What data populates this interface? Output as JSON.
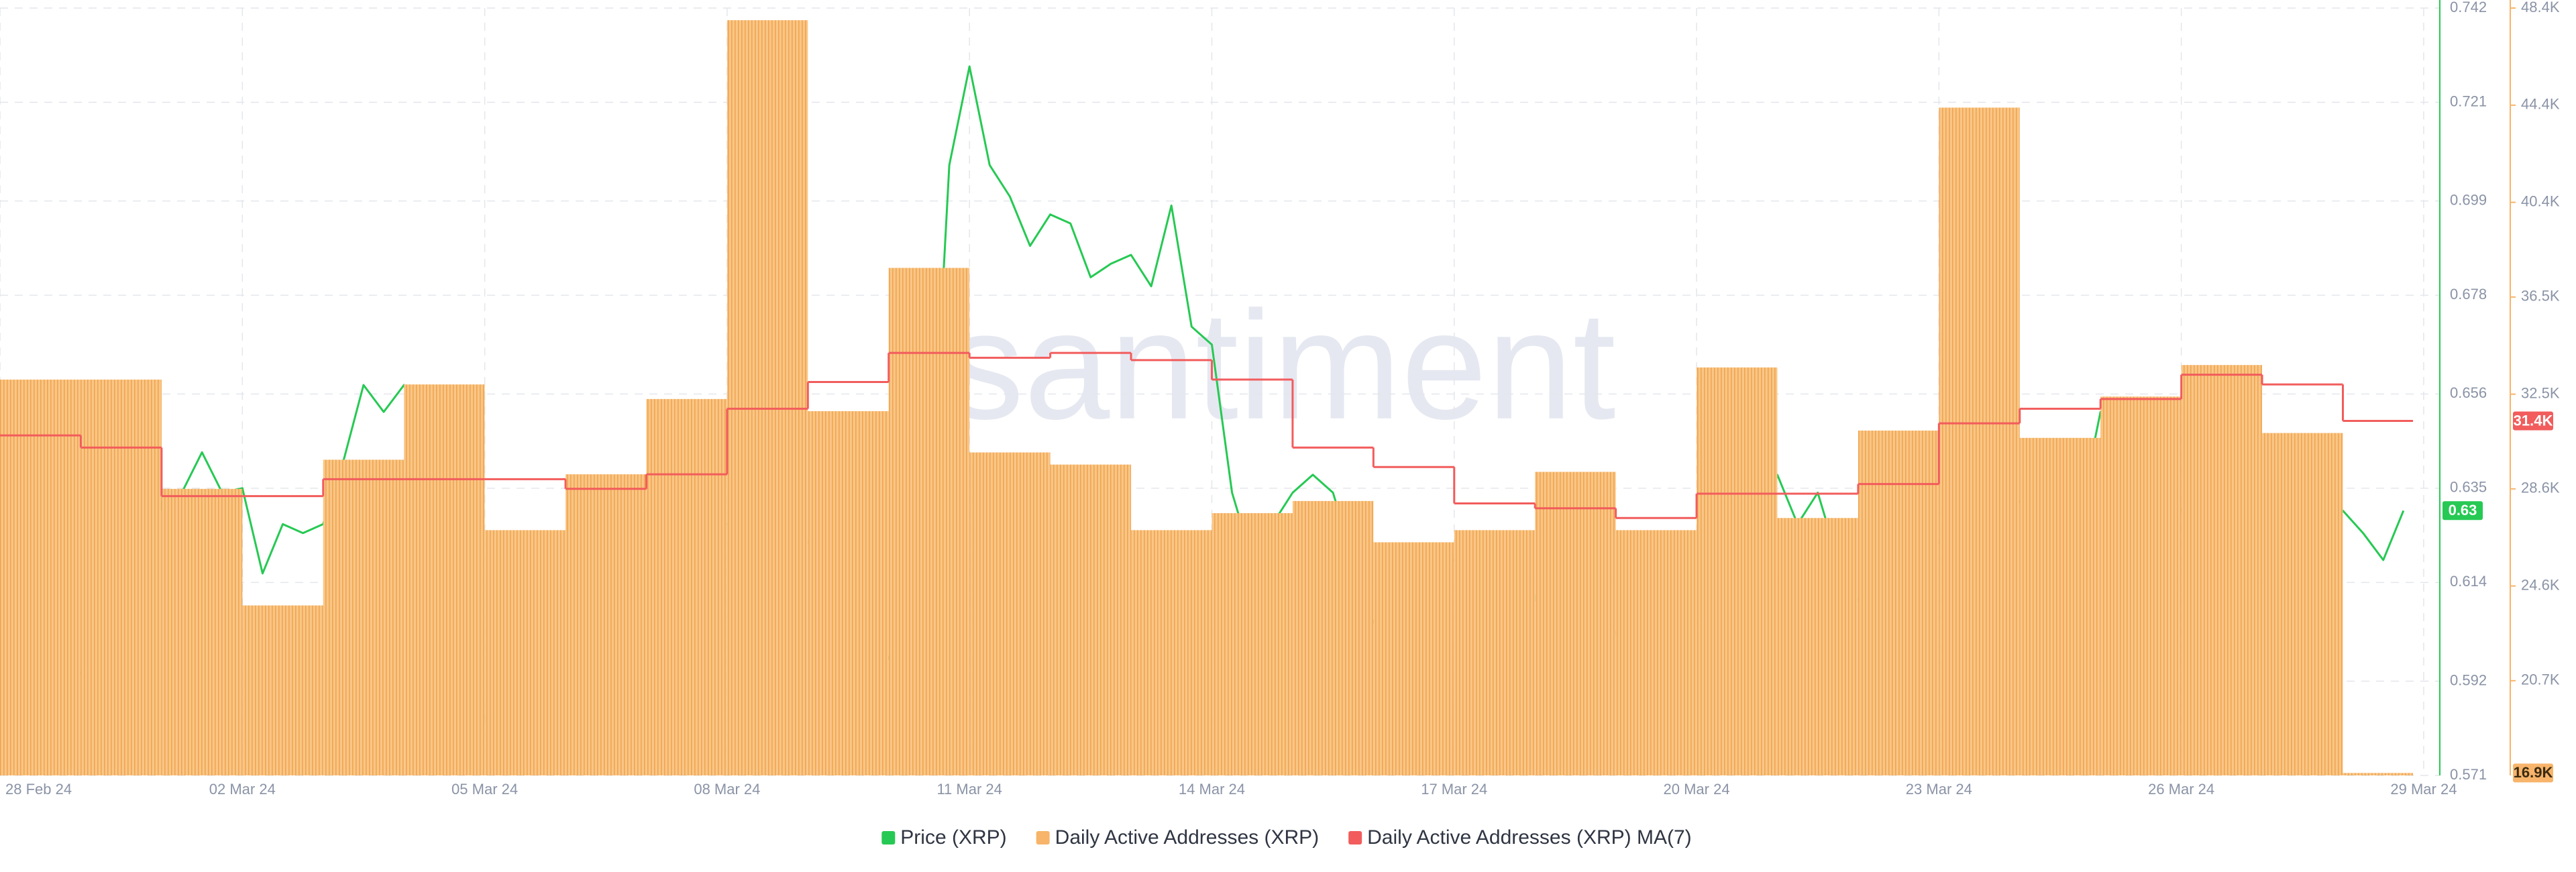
{
  "chart_data": {
    "type": "combo",
    "watermark": "santiment",
    "xlim": [
      0,
      30.2
    ],
    "xticks": [
      {
        "value": 0,
        "label": "28 Feb 24"
      },
      {
        "value": 3,
        "label": "02 Mar 24"
      },
      {
        "value": 6,
        "label": "05 Mar 24"
      },
      {
        "value": 9,
        "label": "08 Mar 24"
      },
      {
        "value": 12,
        "label": "11 Mar 24"
      },
      {
        "value": 15,
        "label": "14 Mar 24"
      },
      {
        "value": 18,
        "label": "17 Mar 24"
      },
      {
        "value": 21,
        "label": "20 Mar 24"
      },
      {
        "value": 24,
        "label": "23 Mar 24"
      },
      {
        "value": 27,
        "label": "26 Mar 24"
      },
      {
        "value": 30,
        "label": "29 Mar 24"
      }
    ],
    "ylim": [
      0.571,
      0.742
    ],
    "yticks": [
      0.571,
      0.592,
      0.614,
      0.635,
      0.656,
      0.678,
      0.699,
      0.721,
      0.742
    ],
    "y2lim": [
      16800,
      48400
    ],
    "y2ticks": [
      {
        "value": 20700,
        "label": "20.7K"
      },
      {
        "value": 24600,
        "label": "24.6K"
      },
      {
        "value": 28600,
        "label": "28.6K"
      },
      {
        "value": 32500,
        "label": "32.5K"
      },
      {
        "value": 36500,
        "label": "36.5K"
      },
      {
        "value": 40400,
        "label": "40.4K"
      },
      {
        "value": 44400,
        "label": "44.4K"
      },
      {
        "value": 48400,
        "label": "48.4K"
      }
    ],
    "grid": true,
    "legend": "bottom",
    "series": [
      {
        "name": "Price (XRP)",
        "type": "line",
        "color": "#26c953",
        "current_label": "0.63",
        "values": [
          0.585,
          0.599,
          0.603,
          0.586,
          0.594,
          0.588,
          0.59,
          0.597,
          0.632,
          0.634,
          0.643,
          0.634,
          0.635,
          0.616,
          0.627,
          0.625,
          0.627,
          0.641,
          0.658,
          0.652,
          0.658,
          0.647,
          0.645,
          0.601,
          0.583,
          0.612,
          0.607,
          0.612,
          0.616,
          0.621,
          0.627,
          0.634,
          0.63,
          0.623,
          0.621,
          0.627,
          0.627,
          0.63,
          0.623,
          0.623,
          0.623,
          0.625,
          0.616,
          0.61,
          0.597,
          0.608,
          0.623,
          0.707,
          0.729,
          0.707,
          0.7,
          0.689,
          0.696,
          0.694,
          0.682,
          0.685,
          0.687,
          0.68,
          0.698,
          0.671,
          0.667,
          0.634,
          0.619,
          0.627,
          0.634,
          0.638,
          0.634,
          0.619,
          0.605,
          0.616,
          0.608,
          0.621,
          0.619,
          0.617,
          0.612,
          0.608,
          0.61,
          0.634,
          0.59,
          0.599,
          0.603,
          0.586,
          0.594,
          0.594,
          0.605,
          0.61,
          0.608,
          0.623,
          0.638,
          0.627,
          0.634,
          0.619,
          0.61,
          0.614,
          0.612,
          0.619,
          0.623,
          0.621,
          0.627,
          0.632,
          0.632,
          0.634,
          0.634,
          0.63,
          0.652,
          0.647,
          0.647,
          0.645,
          0.63,
          0.632,
          0.63,
          0.619,
          0.614,
          0.612,
          0.614,
          0.621,
          0.63,
          0.625,
          0.619,
          0.63
        ]
      },
      {
        "name": "Daily Active Addresses (XRP)",
        "type": "bar",
        "axis": "y2",
        "color": "#f7b46a",
        "current_label": "16.9K",
        "values": [
          33100,
          33100,
          28600,
          23800,
          29800,
          32900,
          26900,
          29200,
          32300,
          47900,
          31800,
          37700,
          30100,
          29600,
          26900,
          27600,
          28100,
          26400,
          26900,
          29300,
          26900,
          33600,
          27400,
          31000,
          44300,
          30700,
          32400,
          33700,
          30900,
          16900
        ]
      },
      {
        "name": "Daily Active Addresses (XRP) MA(7)",
        "type": "step",
        "axis": "y2",
        "color": "#f25c5c",
        "current_label": "31.4K",
        "values": [
          30800,
          30300,
          28300,
          28300,
          29000,
          29000,
          29000,
          28600,
          29200,
          31900,
          33000,
          34200,
          34000,
          34200,
          33900,
          33100,
          30300,
          29500,
          28000,
          27800,
          27400,
          28400,
          28400,
          28800,
          31300,
          31900,
          32300,
          33300,
          32900,
          31400
        ]
      }
    ]
  }
}
